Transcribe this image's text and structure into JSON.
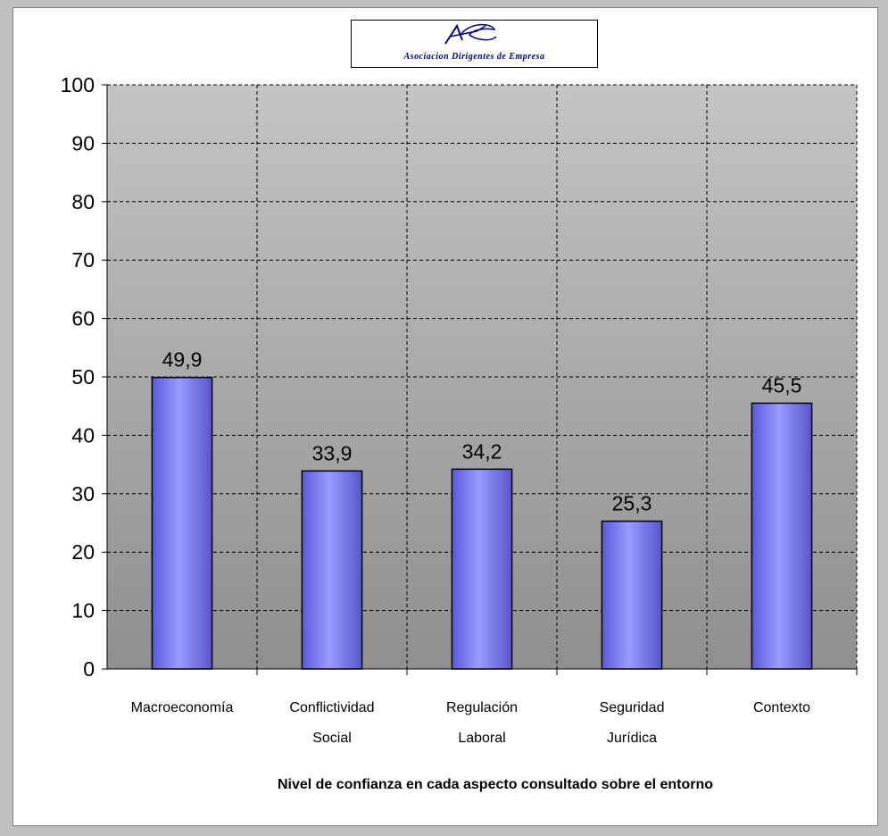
{
  "logo": {
    "text": "Asociacion Dirigentes de Empresa",
    "mark": "ADE"
  },
  "chart_data": {
    "type": "bar",
    "categories": [
      [
        "Macroeconomía"
      ],
      [
        "Conflictividad",
        "Social"
      ],
      [
        "Regulación",
        "Laboral"
      ],
      [
        "Seguridad",
        "Jurídica"
      ],
      [
        "Contexto"
      ]
    ],
    "values": [
      49.9,
      33.9,
      34.2,
      25.3,
      45.5
    ],
    "data_labels": [
      "49,9",
      "33,9",
      "34,2",
      "25,3",
      "45,5"
    ],
    "xlabel": "Nivel de confianza en cada aspecto consultado sobre el entorno",
    "ylabel": "",
    "ylim": [
      0,
      100
    ],
    "yticks": [
      0,
      10,
      20,
      30,
      40,
      50,
      60,
      70,
      80,
      90,
      100
    ],
    "grid": "dashed",
    "legend": "none",
    "colors": {
      "bar": "#8f8fff",
      "bar_edge": "#000000",
      "plot_top": "#c4c4c4",
      "plot_bottom": "#8f8f8f"
    }
  }
}
